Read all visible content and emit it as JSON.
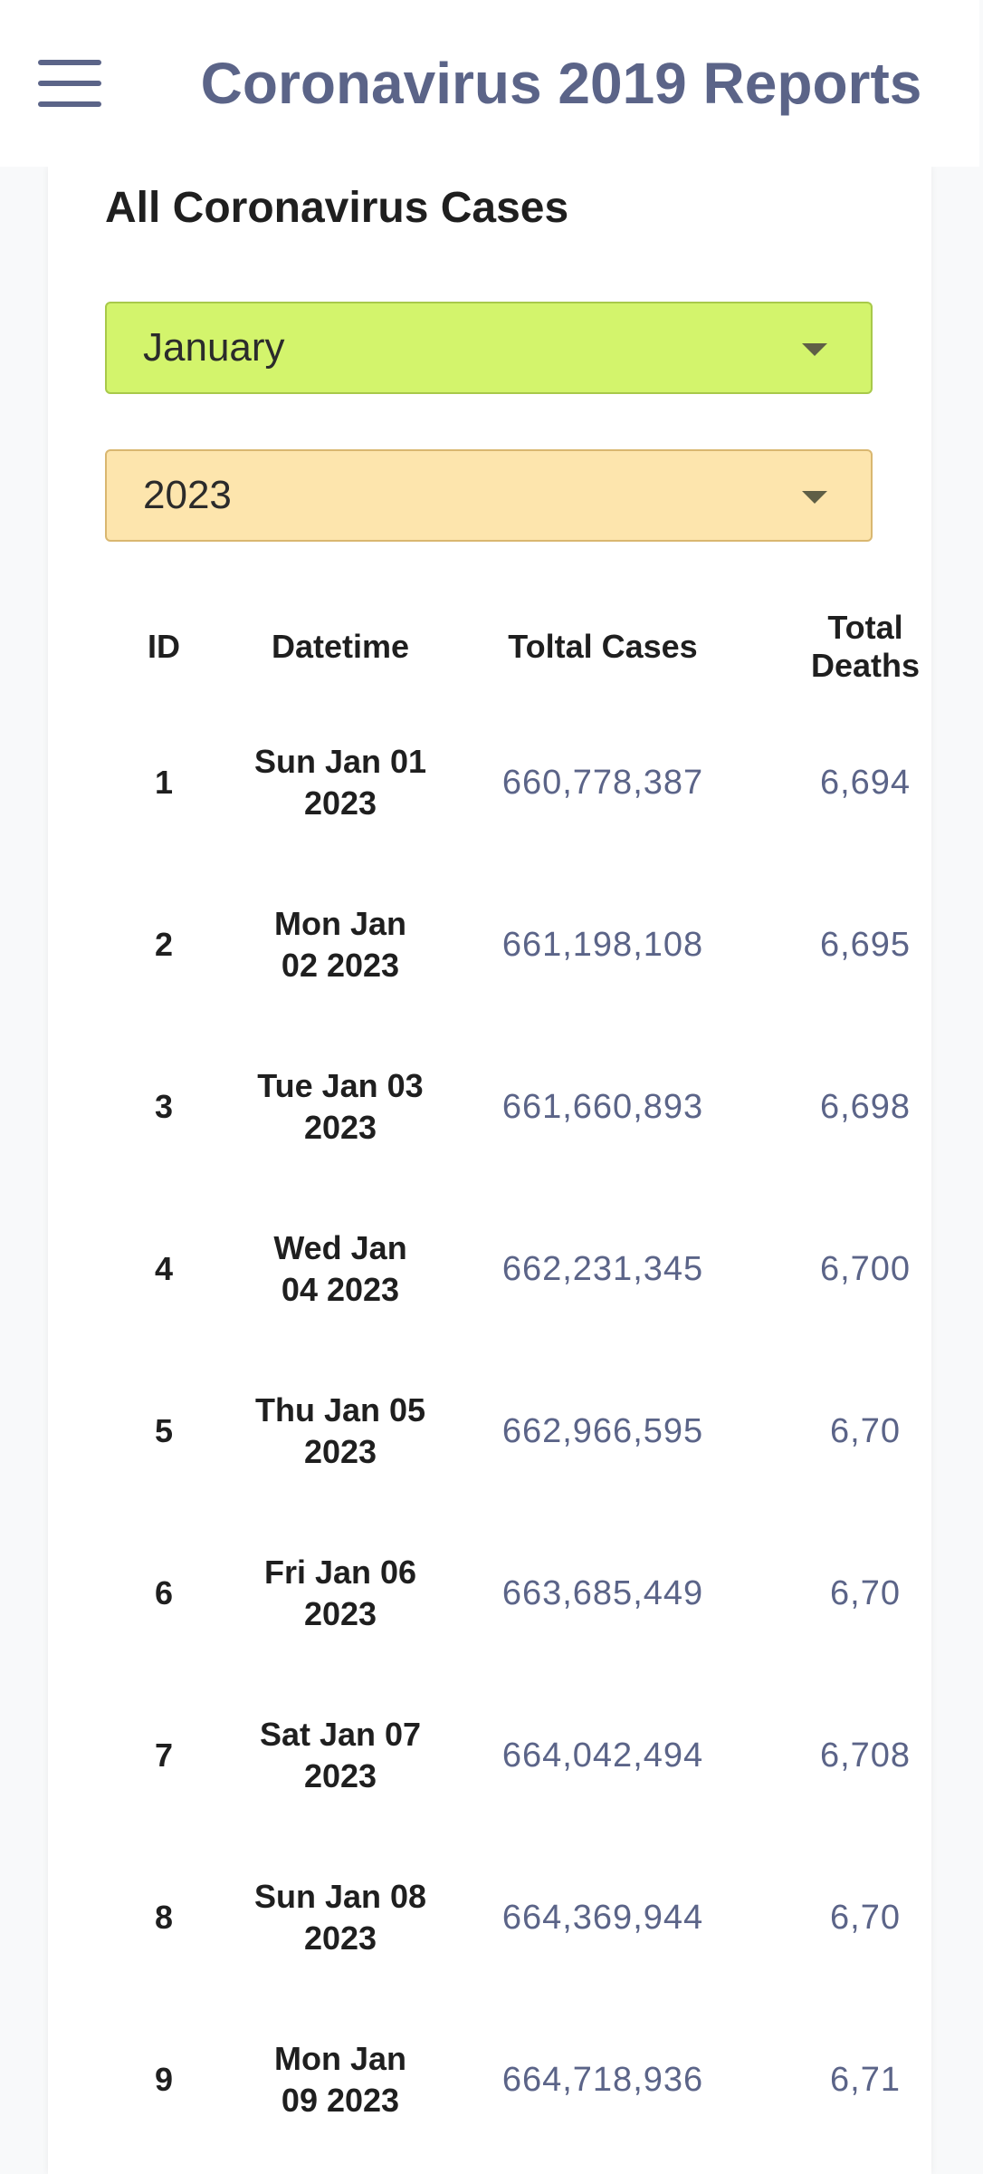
{
  "app_bar": {
    "title": "Coronavirus 2019 Reports",
    "menu_icon": "hamburger-menu-icon"
  },
  "card": {
    "title": "All Coronavirus Cases"
  },
  "filters": {
    "month": {
      "value": "January",
      "icon": "caret-down-icon",
      "color": "#d3f46c"
    },
    "year": {
      "value": "2023",
      "icon": "caret-down-icon",
      "color": "#fde5ad"
    }
  },
  "table": {
    "headers": {
      "id": "ID",
      "datetime": "Datetime",
      "total_cases": "Toltal Cases",
      "total_deaths": "Total Deaths"
    },
    "rows": [
      {
        "id": "1",
        "datetime": "Sun Jan 01 2023",
        "cases": "660,778,387",
        "deaths": "6,694"
      },
      {
        "id": "2",
        "datetime": "Mon Jan 02 2023",
        "cases": "661,198,108",
        "deaths": "6,695"
      },
      {
        "id": "3",
        "datetime": "Tue Jan 03 2023",
        "cases": "661,660,893",
        "deaths": "6,698"
      },
      {
        "id": "4",
        "datetime": "Wed Jan 04 2023",
        "cases": "662,231,345",
        "deaths": "6,700"
      },
      {
        "id": "5",
        "datetime": "Thu Jan 05 2023",
        "cases": "662,966,595",
        "deaths": "6,70"
      },
      {
        "id": "6",
        "datetime": "Fri Jan 06 2023",
        "cases": "663,685,449",
        "deaths": "6,70"
      },
      {
        "id": "7",
        "datetime": "Sat Jan 07 2023",
        "cases": "664,042,494",
        "deaths": "6,708"
      },
      {
        "id": "8",
        "datetime": "Sun Jan 08 2023",
        "cases": "664,369,944",
        "deaths": "6,70"
      },
      {
        "id": "9",
        "datetime": "Mon Jan 09 2023",
        "cases": "664,718,936",
        "deaths": "6,71"
      }
    ]
  }
}
